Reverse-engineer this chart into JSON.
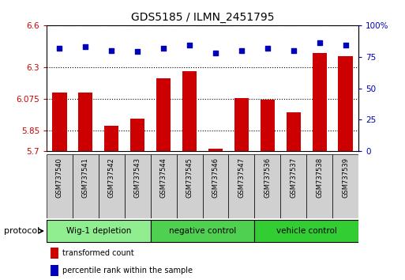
{
  "title": "GDS5185 / ILMN_2451795",
  "samples": [
    "GSM737540",
    "GSM737541",
    "GSM737542",
    "GSM737543",
    "GSM737544",
    "GSM737545",
    "GSM737546",
    "GSM737547",
    "GSM737536",
    "GSM737537",
    "GSM737538",
    "GSM737539"
  ],
  "bar_values": [
    6.12,
    6.12,
    5.88,
    5.93,
    6.22,
    6.27,
    5.72,
    6.08,
    6.07,
    5.98,
    6.4,
    6.38
  ],
  "dot_values": [
    82,
    83,
    80,
    79,
    82,
    84,
    78,
    80,
    82,
    80,
    86,
    84
  ],
  "ylim_left": [
    5.7,
    6.6
  ],
  "ylim_right": [
    0,
    100
  ],
  "yticks_left": [
    5.7,
    5.85,
    6.075,
    6.3,
    6.6
  ],
  "ytick_labels_left": [
    "5.7",
    "5.85",
    "6.075",
    "6.3",
    "6.6"
  ],
  "yticks_right": [
    0,
    25,
    50,
    75,
    100
  ],
  "ytick_labels_right": [
    "0",
    "25",
    "50",
    "75",
    "100%"
  ],
  "groups": [
    {
      "label": "Wig-1 depletion",
      "start": 0,
      "end": 3,
      "color": "#90ee90"
    },
    {
      "label": "negative control",
      "start": 4,
      "end": 7,
      "color": "#50d050"
    },
    {
      "label": "vehicle control",
      "start": 8,
      "end": 11,
      "color": "#32cd32"
    }
  ],
  "bar_color": "#cc0000",
  "dot_color": "#0000bb",
  "bar_width": 0.55,
  "grid_color": "#000000",
  "background_color": "#ffffff",
  "plot_bg_color": "#ffffff",
  "xtick_bg_color": "#d0d0d0",
  "legend_red_label": "transformed count",
  "legend_blue_label": "percentile rank within the sample",
  "protocol_label": "protocol"
}
